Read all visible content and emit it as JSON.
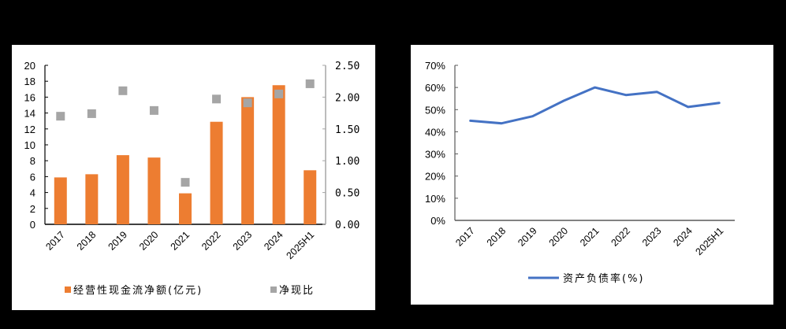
{
  "chart_data": [
    {
      "type": "bar",
      "title": "",
      "xlabel": "",
      "ylabel": "",
      "categories": [
        "2017",
        "2018",
        "2019",
        "2020",
        "2021",
        "2022",
        "2023",
        "2024",
        "2025H1"
      ],
      "series": [
        {
          "name": "经营性现金流净额(亿元)",
          "type": "bar",
          "axis": "left",
          "color": "#ED7D31",
          "values": [
            5.9,
            6.3,
            8.7,
            8.4,
            3.9,
            12.9,
            16.0,
            17.5,
            6.8
          ]
        },
        {
          "name": "净现比",
          "type": "scatter",
          "axis": "right",
          "marker": "square",
          "color": "#A5A5A5",
          "values": [
            1.7,
            1.74,
            2.1,
            1.79,
            0.66,
            1.97,
            1.91,
            2.05,
            2.21
          ]
        }
      ],
      "ylim": [
        0,
        20
      ],
      "y_ticks": [
        "0",
        "2",
        "4",
        "6",
        "8",
        "10",
        "12",
        "14",
        "16",
        "18",
        "20"
      ],
      "y2lim": [
        0,
        2.5
      ],
      "y2_ticks": [
        "0.00",
        "0.50",
        "1.00",
        "1.50",
        "2.00",
        "2.50"
      ],
      "grid": false,
      "legend_position": "bottom"
    },
    {
      "type": "line",
      "title": "",
      "xlabel": "",
      "ylabel": "",
      "categories": [
        "2017",
        "2018",
        "2019",
        "2020",
        "2021",
        "2022",
        "2023",
        "2024",
        "2025H1"
      ],
      "series": [
        {
          "name": "资产负债率(%)",
          "color": "#4472C4",
          "values": [
            45.0,
            43.8,
            47.0,
            54.0,
            60.0,
            56.6,
            58.0,
            51.2,
            53.0
          ]
        }
      ],
      "ylim": [
        0,
        70
      ],
      "y_ticks": [
        "0%",
        "10%",
        "20%",
        "30%",
        "40%",
        "50%",
        "60%",
        "70%"
      ],
      "grid": false,
      "legend_position": "bottom"
    }
  ],
  "left_chart": {
    "legend": {
      "bar_label": "经营性现金流净额(亿元)",
      "marker_label": "净现比"
    }
  },
  "right_chart": {
    "legend": {
      "line_label": "资产负债率(%)"
    }
  }
}
